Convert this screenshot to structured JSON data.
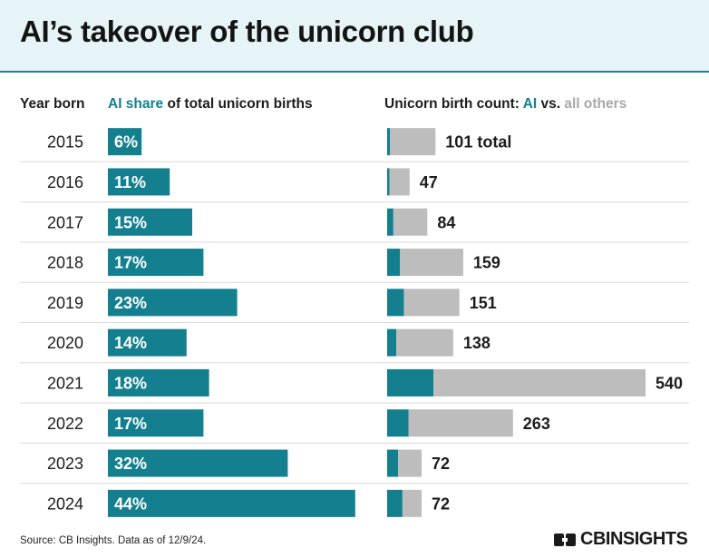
{
  "title": "AI’s takeover of the unicorn club",
  "headers": {
    "year": "Year born",
    "share_ai": "AI share",
    "share_rest": " of total unicorn births",
    "count_prefix": "Unicorn birth count: ",
    "count_ai": "AI",
    "count_vs": " vs. ",
    "count_others": "all others"
  },
  "source": "Source: CB Insights. Data as of 12/9/24.",
  "logo_text": "CBINSIGHTS",
  "colors": {
    "ai": "#14808f",
    "others": "#bdbdbd",
    "rule": "#d9d9d9",
    "title_band": "#e6f4f8"
  },
  "chart_data": [
    {
      "type": "bar",
      "title": "AI share of total unicorn births",
      "categories": [
        "2015",
        "2016",
        "2017",
        "2018",
        "2019",
        "2020",
        "2021",
        "2022",
        "2023",
        "2024"
      ],
      "values": [
        6,
        11,
        15,
        17,
        23,
        14,
        18,
        17,
        32,
        44
      ],
      "labels": [
        "6%",
        "11%",
        "15%",
        "17%",
        "23%",
        "14%",
        "18%",
        "17%",
        "32%",
        "44%"
      ],
      "unit": "%"
    },
    {
      "type": "bar",
      "title": "Unicorn birth count: AI vs. all others",
      "categories": [
        "2015",
        "2016",
        "2017",
        "2018",
        "2019",
        "2020",
        "2021",
        "2022",
        "2023",
        "2024"
      ],
      "series": [
        {
          "name": "AI",
          "values": [
            6,
            5,
            13,
            27,
            35,
            19,
            97,
            45,
            23,
            32
          ]
        },
        {
          "name": "all others",
          "values": [
            95,
            42,
            71,
            132,
            116,
            119,
            443,
            218,
            49,
            40
          ]
        }
      ],
      "totals": [
        101,
        47,
        84,
        159,
        151,
        138,
        540,
        263,
        72,
        72
      ],
      "total_labels": [
        "101 total",
        "47",
        "84",
        "159",
        "151",
        "138",
        "540",
        "263",
        "72",
        "72"
      ],
      "stacked": true
    }
  ]
}
